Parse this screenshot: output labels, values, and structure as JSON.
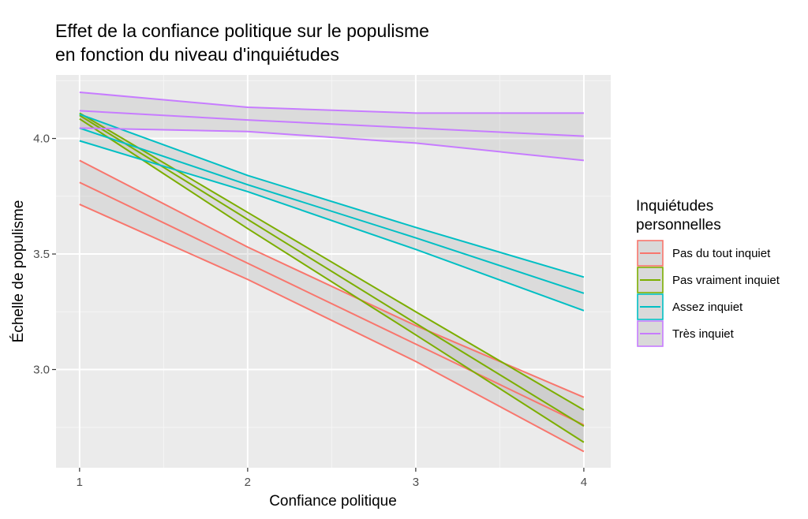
{
  "chart_data": {
    "type": "line",
    "title_lines": [
      "Effet de la confiance politique sur le populisme",
      "en fonction du niveau d'inquiétudes"
    ],
    "xlabel": "Confiance politique",
    "ylabel": "Échelle de populisme",
    "xlim": [
      0.86,
      4.16
    ],
    "ylim": [
      2.575,
      4.275
    ],
    "x_ticks": [
      1,
      2,
      3,
      4
    ],
    "x_tick_labels": [
      "1",
      "2",
      "3",
      "4"
    ],
    "y_ticks": [
      3.0,
      3.5,
      4.0
    ],
    "y_tick_labels": [
      "3.0",
      "3.5",
      "4.0"
    ],
    "grid": true,
    "legend": {
      "title_lines": [
        "Inquiétudes",
        "personnelles"
      ],
      "position": "right"
    },
    "series": [
      {
        "name": "Pas du tout inquiet",
        "color": "#F8766D",
        "x": [
          1,
          2,
          3,
          4
        ],
        "fit": [
          3.81,
          3.46,
          3.11,
          2.76
        ],
        "lower": [
          3.715,
          3.39,
          3.035,
          2.645
        ],
        "upper": [
          3.905,
          3.53,
          3.19,
          2.88
        ]
      },
      {
        "name": "Pas vraiment inquiet",
        "color": "#7CAE00",
        "x": [
          1,
          2,
          3,
          4
        ],
        "fit": [
          4.1,
          3.65,
          3.2,
          2.755
        ],
        "lower": [
          4.085,
          3.61,
          3.15,
          2.685
        ],
        "upper": [
          4.11,
          3.68,
          3.25,
          2.825
        ]
      },
      {
        "name": "Assez inquiet",
        "color": "#00BFC4",
        "x": [
          1,
          2,
          3,
          4
        ],
        "fit": [
          4.045,
          3.8,
          3.57,
          3.33
        ],
        "lower": [
          3.99,
          3.77,
          3.52,
          3.255
        ],
        "upper": [
          4.105,
          3.84,
          3.615,
          3.4
        ]
      },
      {
        "name": "Très inquiet",
        "color": "#C77CFF",
        "x": [
          1,
          2,
          3,
          4
        ],
        "fit": [
          4.12,
          4.08,
          4.045,
          4.01
        ],
        "lower": [
          4.045,
          4.03,
          3.98,
          3.905
        ],
        "upper": [
          4.2,
          4.135,
          4.11,
          4.11
        ]
      }
    ]
  }
}
